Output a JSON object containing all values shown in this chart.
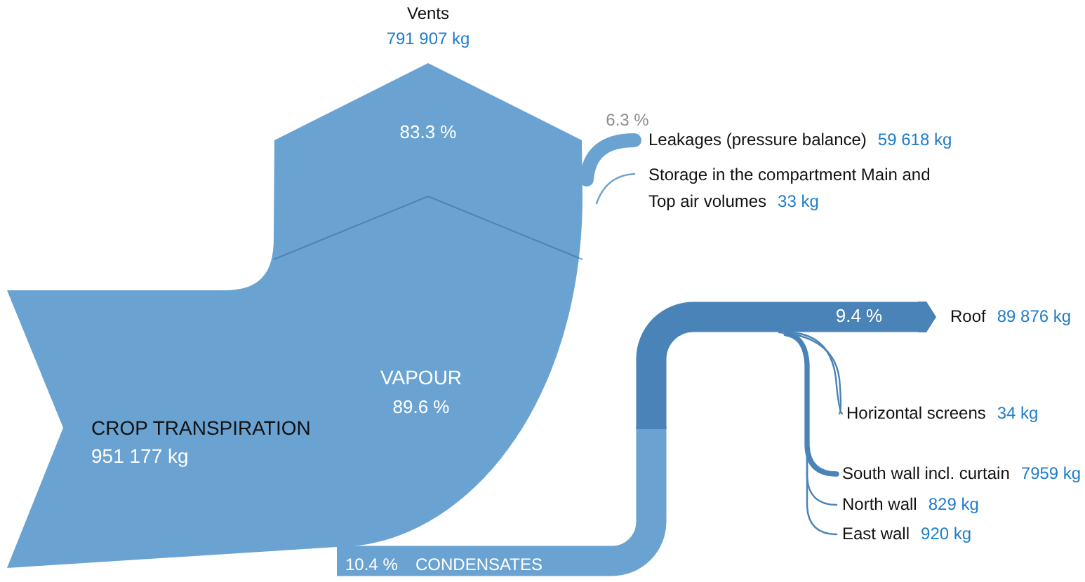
{
  "chart_data": {
    "type": "other",
    "categories": [
      "CROP TRANSPIRATION",
      "Vents",
      "Leakages (pressure balance)",
      "Storage in the compartment Main and Top air volumes",
      "Roof",
      "Horizontal screens",
      "South wall incl. curtain",
      "North wall",
      "East wall"
    ],
    "values": [
      951177,
      791907,
      59618,
      33,
      89876,
      34,
      7959,
      829,
      920
    ],
    "value_labels": [
      "951 177 kg",
      "791 907 kg",
      "59 618 kg",
      "33 kg",
      "89 876 kg",
      "34 kg",
      "7959 kg",
      "829 kg",
      "920 kg"
    ],
    "annotations": [
      "VAPOUR",
      "89.6 %",
      "10.4 %",
      "CONDENSATES",
      "83.3 %",
      "6.3 %",
      "9.4 %"
    ]
  }
}
